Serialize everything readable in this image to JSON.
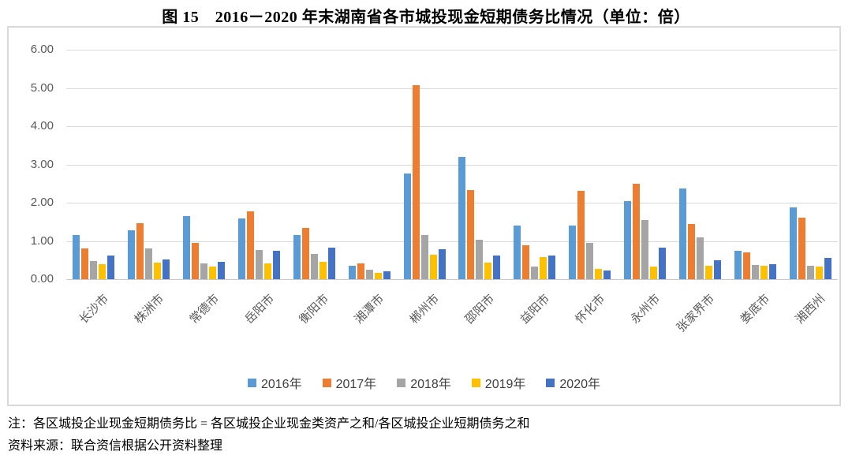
{
  "title": "图 15　2016－2020 年末湖南省各市城投现金短期债务比情况（单位：倍）",
  "notes": {
    "line1": "注：各区城投企业现金短期债务比 = 各区城投企业现金类资产之和/各区城投企业短期债务之和",
    "line2": "资料来源：联合资信根据公开资料整理"
  },
  "chart_data": {
    "type": "bar",
    "title": "图 15　2016－2020 年末湖南省各市城投现金短期债务比情况（单位：倍）",
    "xlabel": "",
    "ylabel": "",
    "ylim": [
      0,
      6
    ],
    "yticks": [
      "6.00",
      "5.00",
      "4.00",
      "3.00",
      "2.00",
      "1.00",
      "0.00"
    ],
    "grid": true,
    "legend_position": "bottom",
    "categories": [
      "长沙市",
      "株洲市",
      "常德市",
      "岳阳市",
      "衡阳市",
      "湘潭市",
      "郴州市",
      "邵阳市",
      "益阳市",
      "怀化市",
      "永州市",
      "张家界市",
      "娄底市",
      "湘西州"
    ],
    "series": [
      {
        "name": "2016年",
        "color": "#5B9BD5",
        "values": [
          1.15,
          1.27,
          1.64,
          1.58,
          1.15,
          0.36,
          2.77,
          3.2,
          1.4,
          1.4,
          2.05,
          2.38,
          0.74,
          1.88
        ]
      },
      {
        "name": "2017年",
        "color": "#ED7D31",
        "values": [
          0.8,
          1.46,
          0.95,
          1.78,
          1.33,
          0.41,
          5.08,
          2.32,
          0.89,
          2.31,
          2.5,
          1.44,
          0.71,
          1.61
        ]
      },
      {
        "name": "2018年",
        "color": "#A5A5A5",
        "values": [
          0.48,
          0.8,
          0.42,
          0.76,
          0.66,
          0.25,
          1.15,
          1.03,
          0.34,
          0.94,
          1.54,
          1.1,
          0.37,
          0.36
        ]
      },
      {
        "name": "2019年",
        "color": "#FFC000",
        "values": [
          0.4,
          0.44,
          0.32,
          0.42,
          0.45,
          0.16,
          0.63,
          0.44,
          0.57,
          0.26,
          0.34,
          0.35,
          0.35,
          0.33
        ]
      },
      {
        "name": "2020年",
        "color": "#4472C4",
        "values": [
          0.62,
          0.52,
          0.46,
          0.74,
          0.83,
          0.2,
          0.79,
          0.61,
          0.62,
          0.23,
          0.82,
          0.49,
          0.39,
          0.55
        ]
      }
    ]
  }
}
